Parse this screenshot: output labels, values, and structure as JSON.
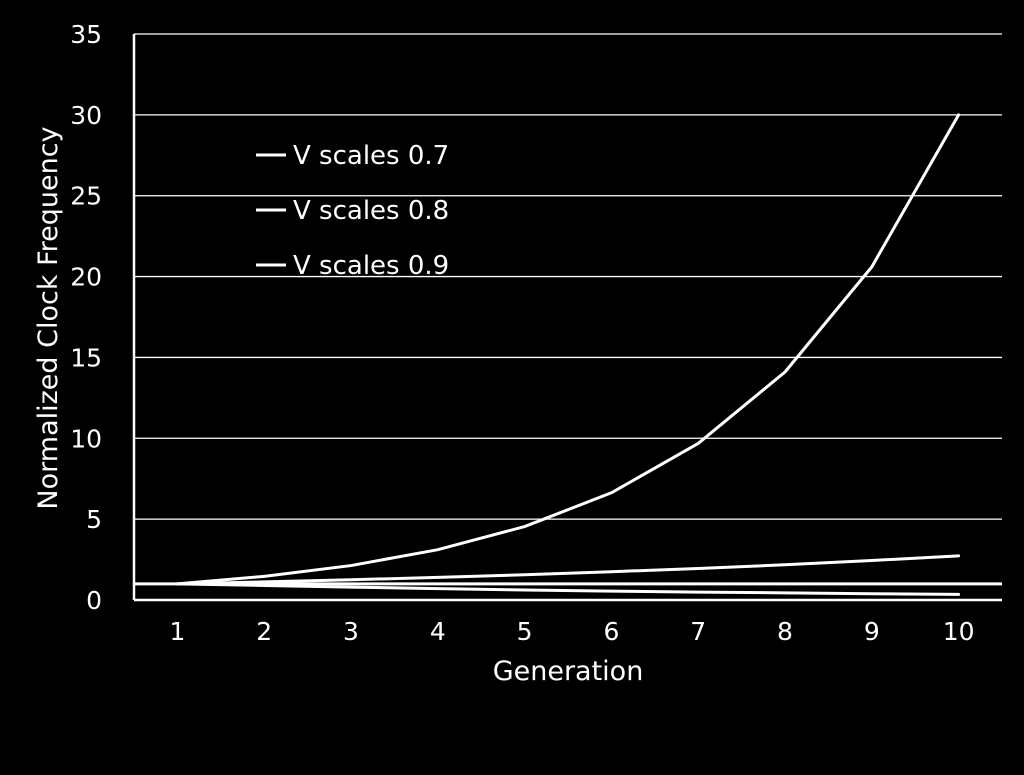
{
  "chart_data": {
    "type": "line",
    "title": "",
    "xlabel": "Generation",
    "ylabel": "Normalized Clock Frequency",
    "x": [
      1,
      2,
      3,
      4,
      5,
      6,
      7,
      8,
      9,
      10
    ],
    "xlim": [
      0.5,
      10.5
    ],
    "ylim": [
      0,
      35
    ],
    "yticks": [
      0,
      5,
      10,
      15,
      20,
      25,
      30,
      35
    ],
    "grid": true,
    "legend_position": "top-left",
    "colors": {
      "background": "#000000",
      "foreground": "#ffffff"
    },
    "series": [
      {
        "name": "V scales 0.7",
        "values": [
          1.0,
          1.46,
          2.13,
          3.11,
          4.54,
          6.63,
          9.68,
          14.1,
          20.6,
          30.0
        ]
      },
      {
        "name": "V scales 0.8",
        "values": [
          1.0,
          1.12,
          1.25,
          1.4,
          1.56,
          1.75,
          1.95,
          2.18,
          2.44,
          2.73
        ]
      },
      {
        "name": "V scales 0.9",
        "values": [
          1.0,
          0.9,
          0.8,
          0.7,
          0.62,
          0.55,
          0.49,
          0.44,
          0.39,
          0.35
        ]
      }
    ],
    "reference_line": {
      "y": 1
    }
  }
}
